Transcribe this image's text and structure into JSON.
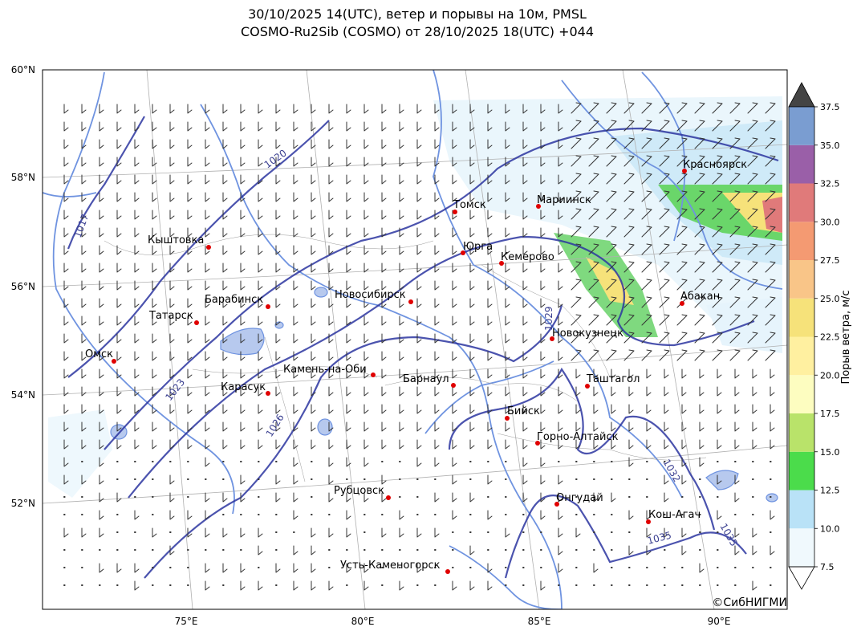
{
  "title": {
    "line1": "30/10/2025 14(UTC), ветер и порывы на 10м, PMSL",
    "line2": "COSMO-Ru2Sib (COSMO) от 28/10/2025 18(UTC) +044"
  },
  "axes": {
    "lat_labels": [
      "60°N",
      "58°N",
      "56°N",
      "54°N",
      "52°N"
    ],
    "lon_labels": [
      "75°E",
      "80°E",
      "85°E",
      "90°E"
    ]
  },
  "isobar_labels": [
    "1017",
    "1020",
    "1023",
    "1026",
    "1029",
    "1032",
    "1035",
    "1035"
  ],
  "cities": [
    {
      "name": "Красноярск"
    },
    {
      "name": "Томск"
    },
    {
      "name": "Мариинск"
    },
    {
      "name": "Кыштовка"
    },
    {
      "name": "Юрга"
    },
    {
      "name": "Кемерово"
    },
    {
      "name": "Барабинск"
    },
    {
      "name": "Новосибирск"
    },
    {
      "name": "Абакан"
    },
    {
      "name": "Татарск"
    },
    {
      "name": "Новокузнецк"
    },
    {
      "name": "Омск"
    },
    {
      "name": "Камень-на-Оби"
    },
    {
      "name": "Барнаул"
    },
    {
      "name": "Таштагол"
    },
    {
      "name": "Карасук"
    },
    {
      "name": "Бийск"
    },
    {
      "name": "Горно-Алтайск"
    },
    {
      "name": "Рубцовск"
    },
    {
      "name": "Онгудай"
    },
    {
      "name": "Кош-Агач"
    },
    {
      "name": "Усть-Каменогорск"
    }
  ],
  "colorbar": {
    "label": "Порыв ветра, м/с",
    "ticks": [
      "7.5",
      "10.0",
      "12.5",
      "15.0",
      "17.5",
      "20.0",
      "22.5",
      "25.0",
      "27.5",
      "30.0",
      "32.5",
      "35.0",
      "37.5"
    ],
    "colors": [
      "#f0f9fd",
      "#b9e2f7",
      "#4bdc4b",
      "#b9e36a",
      "#fdfdc0",
      "#fff0a0",
      "#f6e27a",
      "#f9c588",
      "#f49a72",
      "#e07a7a",
      "#9a5fa8",
      "#7a9dd1",
      "#c8c8c8"
    ],
    "over_color": "#444444",
    "under_color": "#ffffff"
  },
  "credit": "©СибНИГМИ"
}
